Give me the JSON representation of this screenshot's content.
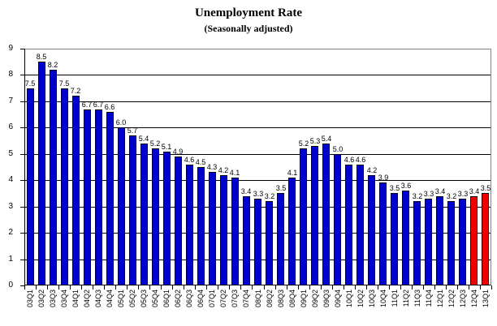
{
  "title": "Unemployment Rate",
  "subtitle": "(Seasonally adjusted)",
  "chart_data": {
    "type": "bar",
    "title": "Unemployment Rate",
    "subtitle": "(Seasonally adjusted)",
    "xlabel": "",
    "ylabel": "",
    "ylim": [
      0,
      9
    ],
    "yticks": [
      0,
      1,
      2,
      3,
      4,
      5,
      6,
      7,
      8,
      9
    ],
    "grid": "horizontal",
    "legend": "none",
    "data_labels": true,
    "categories": [
      "03Q1",
      "03Q2",
      "03Q3",
      "03Q4",
      "04Q1",
      "04Q2",
      "04Q3",
      "04Q4",
      "05Q1",
      "05Q2",
      "05Q3",
      "05Q4",
      "06Q1",
      "06Q2",
      "06Q3",
      "06Q4",
      "07Q1",
      "07Q2",
      "07Q3",
      "07Q4",
      "08Q1",
      "08Q2",
      "08Q3",
      "08Q4",
      "09Q1",
      "09Q2",
      "09Q3",
      "09Q4",
      "10Q1",
      "10Q2",
      "10Q3",
      "10Q4",
      "11Q1",
      "11Q2",
      "11Q3",
      "11Q4",
      "12Q1",
      "12Q2",
      "12Q3",
      "12Q4",
      "13Q1"
    ],
    "values": [
      7.5,
      8.5,
      8.2,
      7.5,
      7.2,
      6.7,
      6.7,
      6.6,
      6.0,
      5.7,
      5.4,
      5.2,
      5.1,
      4.9,
      4.6,
      4.5,
      4.3,
      4.2,
      4.1,
      3.4,
      3.3,
      3.2,
      3.5,
      4.1,
      5.2,
      5.3,
      5.4,
      5.0,
      4.6,
      4.6,
      4.2,
      3.9,
      3.5,
      3.6,
      3.2,
      3.3,
      3.4,
      3.2,
      3.3,
      3.4,
      3.5
    ],
    "value_labels": [
      "7.5",
      "8.5",
      "8.2",
      "7.5",
      "7.2",
      "6.7",
      "6.7",
      "6.6",
      "6.0",
      "5.7",
      "5.4",
      "5.2",
      "5.1",
      "4.9",
      "4.6",
      "4.5",
      "4.3",
      "4.2",
      "4.1",
      "3.4",
      "3.3",
      "3.2",
      "3.5",
      "4.1",
      "5.2",
      "5.3",
      "5.4",
      "5.0",
      "4.6",
      "4.6",
      "4.2",
      "3.9",
      "3.5",
      "3.6",
      "3.2",
      "3.3",
      "3.4",
      "3.2",
      "3.3",
      "3.4",
      "3.5"
    ],
    "highlight_indices": [
      39,
      40
    ]
  },
  "colors": {
    "bar_blue": "#0000CC",
    "bar_red": "#EE0000",
    "gridline": "#000000",
    "plot_border": "#848484",
    "axis": "#000000",
    "background": "#FFFFFF",
    "text": "#000000"
  }
}
